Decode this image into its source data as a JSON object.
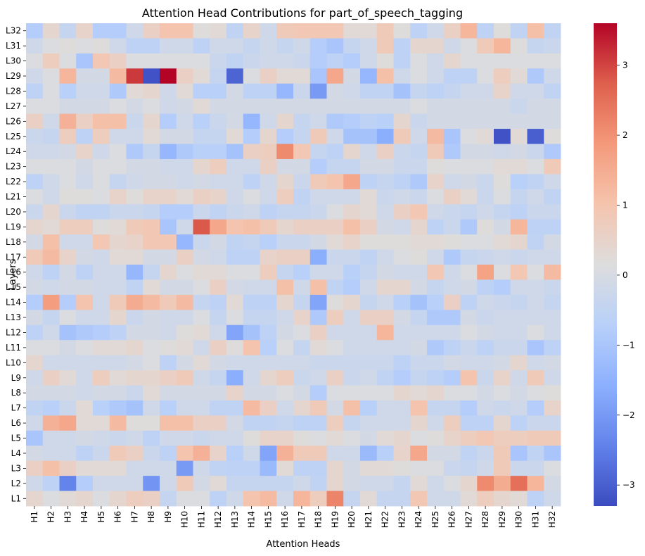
{
  "chart_data": {
    "type": "heatmap",
    "title": "Attention Head Contributions for part_of_speech_tagging",
    "xlabel": "Attention Heads",
    "ylabel": "Layers",
    "x_categories": [
      "H1",
      "H2",
      "H3",
      "H4",
      "H5",
      "H6",
      "H7",
      "H8",
      "H9",
      "H10",
      "H11",
      "H12",
      "H13",
      "H14",
      "H15",
      "H16",
      "H17",
      "H18",
      "H19",
      "H20",
      "H21",
      "H22",
      "H23",
      "H24",
      "H25",
      "H26",
      "H27",
      "H28",
      "H29",
      "H30",
      "H31",
      "H32"
    ],
    "y_categories": [
      "L32",
      "L31",
      "L30",
      "L29",
      "L28",
      "L27",
      "L26",
      "L25",
      "L24",
      "L23",
      "L22",
      "L21",
      "L20",
      "L19",
      "L18",
      "L17",
      "L16",
      "L15",
      "L14",
      "L13",
      "L12",
      "L11",
      "L10",
      "L9",
      "L8",
      "L7",
      "L6",
      "L5",
      "L4",
      "L3",
      "L2",
      "L1"
    ],
    "colormap": "coolwarm",
    "vmin": -3.3,
    "vmax": 3.6,
    "colorbar_ticks": [
      3,
      2,
      1,
      0,
      -1,
      -2,
      -3
    ],
    "colorbar_tick_labels": [
      "3",
      "2",
      "1",
      "0",
      "−1",
      "−2",
      "−3"
    ],
    "values": [
      [
        -0.8,
        0.4,
        -0.4,
        0.5,
        -0.8,
        -0.8,
        -0.2,
        0.6,
        1.0,
        1.0,
        0.2,
        0.3,
        -0.5,
        0.5,
        -0.2,
        0.8,
        0.9,
        0.9,
        0.9,
        0.3,
        0.3,
        0.8,
        0.2,
        -0.6,
        -0.2,
        0.6,
        1.3,
        -0.6,
        0.2,
        -0.5,
        1.1,
        -0.5
      ],
      [
        -0.2,
        0.1,
        0.2,
        0.1,
        0.2,
        -0.2,
        -0.6,
        -0.6,
        -0.2,
        -0.2,
        -0.6,
        -0.2,
        -0.2,
        -0.4,
        -0.2,
        -0.4,
        -0.2,
        -0.8,
        -1.0,
        -0.4,
        -0.2,
        0.8,
        -0.6,
        0.4,
        0.4,
        -0.2,
        0.1,
        0.8,
        1.3,
        0.2,
        -0.4,
        -0.3
      ],
      [
        0.1,
        0.7,
        0.1,
        -1.0,
        0.9,
        0.6,
        0.1,
        0.1,
        0.1,
        0.1,
        0.1,
        -0.3,
        -0.5,
        -0.3,
        -0.2,
        -0.2,
        -0.3,
        -0.8,
        -0.6,
        -0.8,
        -0.2,
        0.2,
        -0.6,
        0.1,
        -0.2,
        0.4,
        0.1,
        0.1,
        0.1,
        0.1,
        0.1,
        0.1
      ],
      [
        -0.2,
        0.1,
        1.3,
        -0.1,
        -0.1,
        1.2,
        3.1,
        -3.2,
        3.6,
        0.6,
        0.3,
        -0.4,
        -2.9,
        0.1,
        0.6,
        0.3,
        0.3,
        -1.0,
        1.6,
        -0.1,
        -1.4,
        1.1,
        -0.2,
        0.1,
        -0.2,
        -0.6,
        -0.6,
        0.1,
        0.7,
        0.3,
        -0.9,
        -0.2
      ],
      [
        -0.6,
        0.1,
        -0.7,
        -0.2,
        -0.2,
        -0.9,
        0.3,
        0.4,
        -0.2,
        0.3,
        -0.7,
        -0.7,
        -0.1,
        -0.6,
        -0.6,
        -1.4,
        -0.3,
        -2.0,
        -0.1,
        -0.2,
        -0.5,
        -0.5,
        -1.1,
        -0.4,
        -0.6,
        -0.4,
        -0.2,
        -0.2,
        0.5,
        -0.2,
        -0.2,
        -0.5
      ],
      [
        0.1,
        0.1,
        -0.1,
        -0.1,
        -0.1,
        0.1,
        -0.1,
        0.1,
        -0.2,
        -0.1,
        0.3,
        -0.1,
        -0.1,
        -0.1,
        -0.1,
        -0.1,
        -0.1,
        -0.1,
        -0.1,
        -0.1,
        -0.1,
        -0.1,
        -0.1,
        0.1,
        -0.1,
        -0.1,
        -0.1,
        -0.1,
        -0.1,
        -0.3,
        -0.1,
        -0.1
      ],
      [
        0.6,
        -0.2,
        1.4,
        0.6,
        1.1,
        1.1,
        -0.3,
        0.4,
        -0.8,
        -0.2,
        -0.7,
        -0.3,
        -0.1,
        -1.4,
        -0.2,
        0.4,
        -0.4,
        -0.2,
        -0.9,
        -0.8,
        -0.6,
        -0.7,
        0.4,
        -0.3,
        -0.1,
        -0.1,
        -0.1,
        -0.1,
        -0.1,
        -0.1,
        -0.1,
        -0.1
      ],
      [
        -0.3,
        -0.4,
        0.7,
        -0.6,
        0.7,
        -0.2,
        -0.2,
        0.3,
        -0.1,
        -0.1,
        -0.4,
        -0.4,
        0.3,
        -0.8,
        0.4,
        -0.8,
        -0.4,
        0.8,
        -0.2,
        -1.1,
        -1.1,
        -1.6,
        0.8,
        -0.2,
        1.2,
        -1.0,
        0.1,
        0.3,
        -3.2,
        0.3,
        -3.0,
        0.2
      ],
      [
        -0.2,
        -0.2,
        -0.1,
        0.5,
        -0.2,
        0.1,
        -0.9,
        -0.4,
        -1.4,
        -0.9,
        -0.7,
        -0.7,
        -1.1,
        0.6,
        0.7,
        2.1,
        0.9,
        -0.4,
        -0.6,
        0.4,
        -0.2,
        0.6,
        -0.3,
        -0.4,
        0.8,
        -0.9,
        -0.1,
        -0.1,
        -0.2,
        -0.1,
        -0.3,
        -0.9
      ],
      [
        0.1,
        0.1,
        0.1,
        -0.1,
        0.1,
        0.1,
        -0.1,
        -0.1,
        -0.2,
        -0.2,
        0.4,
        0.7,
        -0.2,
        -0.2,
        0.6,
        -0.1,
        -0.1,
        -0.8,
        -0.4,
        -0.4,
        -0.1,
        -0.1,
        -0.3,
        -0.3,
        0.2,
        0.1,
        0.1,
        0.1,
        0.3,
        0.3,
        0.1,
        0.8
      ],
      [
        -0.6,
        -0.2,
        0.1,
        -0.2,
        0.1,
        -0.4,
        -0.2,
        -0.1,
        -0.1,
        -0.2,
        -0.1,
        -0.2,
        -0.2,
        -0.6,
        -0.2,
        0.4,
        -0.3,
        0.8,
        1.0,
        1.6,
        -0.6,
        -0.4,
        -0.6,
        -0.9,
        0.5,
        -0.2,
        -0.1,
        -0.3,
        0.2,
        -0.7,
        -0.5,
        -0.2
      ],
      [
        0.1,
        -0.2,
        0.2,
        0.2,
        0.1,
        0.5,
        0.2,
        0.5,
        0.5,
        0.3,
        0.6,
        0.5,
        -0.2,
        0.1,
        -0.2,
        0.7,
        -0.5,
        -0.2,
        -0.2,
        -0.2,
        0.3,
        -0.3,
        -0.2,
        -0.3,
        0.1,
        0.6,
        0.3,
        -0.3,
        0.1,
        -0.4,
        -0.2,
        -0.5
      ],
      [
        -0.3,
        0.4,
        -0.3,
        -0.5,
        -0.5,
        -0.3,
        -0.3,
        -0.4,
        -0.8,
        -0.8,
        -0.3,
        -0.5,
        -0.3,
        -0.2,
        -0.6,
        -0.4,
        -0.4,
        -0.3,
        0.1,
        0.4,
        0.3,
        -0.2,
        0.6,
        0.9,
        -0.2,
        -0.3,
        -0.4,
        -0.2,
        -0.4,
        -0.6,
        -0.3,
        -0.3
      ],
      [
        0.4,
        0.3,
        0.7,
        0.7,
        0.2,
        0.3,
        0.8,
        0.9,
        -1.0,
        -0.2,
        2.8,
        1.6,
        1.0,
        1.1,
        0.8,
        0.4,
        0.6,
        0.6,
        0.6,
        1.1,
        0.6,
        -0.1,
        -0.2,
        0.4,
        -0.6,
        -0.3,
        -0.9,
        0.2,
        -0.1,
        1.3,
        -0.6,
        -0.6
      ],
      [
        -0.1,
        1.1,
        -0.2,
        -0.2,
        0.9,
        0.4,
        0.5,
        0.9,
        0.9,
        -1.4,
        -0.3,
        -0.1,
        -0.5,
        -0.4,
        -0.7,
        -0.3,
        -0.3,
        -0.1,
        0.3,
        0.5,
        0.2,
        0.2,
        0.2,
        0.3,
        0.3,
        0.2,
        0.1,
        0.1,
        0.3,
        0.4,
        -0.5,
        -0.1
      ],
      [
        0.8,
        1.2,
        0.5,
        -0.1,
        -0.2,
        0.3,
        0.3,
        -0.1,
        -0.1,
        0.6,
        -0.1,
        -0.2,
        -0.6,
        -0.6,
        0.5,
        0.6,
        0.6,
        -1.6,
        -0.3,
        -0.3,
        -0.5,
        -0.2,
        0.1,
        0.2,
        -0.2,
        -0.9,
        -0.4,
        -0.3,
        -0.2,
        -0.3,
        -0.2,
        -0.2
      ],
      [
        -0.2,
        -0.6,
        -0.1,
        -0.6,
        -0.2,
        -0.2,
        -1.4,
        -0.4,
        0.4,
        0.1,
        0.3,
        0.3,
        0.1,
        0.1,
        0.7,
        -0.4,
        -0.7,
        -0.2,
        -0.2,
        -0.7,
        -0.4,
        -0.1,
        -0.2,
        -0.2,
        0.9,
        -0.2,
        0.1,
        1.7,
        0.1,
        0.9,
        0.1,
        1.2
      ],
      [
        -0.1,
        -0.2,
        -0.1,
        -0.1,
        -0.2,
        -0.2,
        -0.5,
        0.3,
        -0.1,
        -0.1,
        0.1,
        0.6,
        -0.1,
        -0.2,
        -0.2,
        1.1,
        -0.2,
        1.1,
        -0.5,
        -0.8,
        -0.2,
        0.4,
        0.4,
        -0.1,
        -0.4,
        -0.2,
        -0.1,
        -0.6,
        -0.8,
        -0.2,
        -0.2,
        -0.3
      ],
      [
        -0.8,
        1.8,
        -0.8,
        1.0,
        -0.2,
        0.8,
        1.5,
        1.2,
        0.8,
        1.2,
        -0.4,
        -0.6,
        0.3,
        -0.6,
        -0.6,
        0.4,
        -0.4,
        -1.8,
        0.2,
        0.4,
        -0.4,
        -0.2,
        -0.7,
        -1.1,
        -0.7,
        0.6,
        -0.6,
        -0.2,
        -0.3,
        -0.4,
        -0.2,
        -0.4
      ],
      [
        -0.1,
        -0.4,
        0.1,
        -0.2,
        -0.2,
        0.4,
        -0.3,
        -0.1,
        -0.2,
        -0.2,
        0.1,
        -0.4,
        0.1,
        -0.4,
        -0.4,
        -0.2,
        0.5,
        -0.9,
        0.7,
        -0.2,
        0.6,
        0.6,
        -0.1,
        -0.4,
        -0.9,
        -0.9,
        -0.1,
        -0.3,
        -0.2,
        -0.2,
        -0.2,
        -0.2
      ],
      [
        -0.6,
        -0.2,
        -1.1,
        -0.9,
        -0.8,
        -0.6,
        -0.1,
        -0.1,
        -0.2,
        0.2,
        0.3,
        -0.2,
        -1.8,
        -1.1,
        -0.6,
        -0.1,
        0.1,
        0.6,
        -0.2,
        -0.2,
        -0.2,
        1.3,
        -0.2,
        -0.2,
        -0.2,
        -0.2,
        0.1,
        -0.1,
        -0.2,
        -0.2,
        0.1,
        -0.2
      ],
      [
        0.1,
        0.1,
        -0.1,
        0.1,
        0.3,
        0.3,
        0.4,
        0.1,
        0.2,
        0.3,
        -0.2,
        0.6,
        0.2,
        1.0,
        -0.7,
        0.1,
        -0.4,
        0.3,
        0.1,
        -0.2,
        -0.2,
        -0.2,
        -0.2,
        -0.1,
        -0.9,
        -0.6,
        -0.3,
        -0.6,
        -0.3,
        -0.3,
        -1.0,
        -0.6
      ],
      [
        0.4,
        -0.2,
        -0.2,
        -0.2,
        -0.2,
        -0.2,
        -0.1,
        0.1,
        -0.6,
        -0.1,
        0.3,
        -0.1,
        -0.2,
        -0.2,
        -0.2,
        -0.2,
        -0.2,
        -0.3,
        -0.3,
        -0.3,
        -0.3,
        -0.3,
        -0.6,
        -0.3,
        -0.3,
        -0.1,
        -0.2,
        -0.2,
        -0.1,
        0.4,
        -0.2,
        -0.1
      ],
      [
        -0.2,
        0.6,
        0.3,
        -0.2,
        0.7,
        0.3,
        0.4,
        0.4,
        0.6,
        0.8,
        -0.2,
        -0.4,
        -1.6,
        -0.2,
        0.4,
        0.7,
        -0.3,
        -0.2,
        0.6,
        -0.3,
        -0.2,
        -0.5,
        -0.8,
        -0.4,
        -0.6,
        -0.8,
        1.0,
        -0.3,
        0.5,
        -0.2,
        0.8,
        -0.2
      ],
      [
        -0.1,
        -0.1,
        -0.1,
        -0.2,
        -0.1,
        -0.1,
        -0.3,
        0.3,
        -0.1,
        -0.1,
        -0.1,
        -0.1,
        0.5,
        -0.1,
        -0.1,
        0.1,
        -0.1,
        -0.8,
        0.1,
        0.1,
        0.1,
        0.1,
        0.4,
        0.3,
        0.4,
        0.1,
        0.1,
        -0.1,
        0.1,
        -0.1,
        0.1,
        0.2
      ],
      [
        -0.5,
        -0.7,
        -0.3,
        0.3,
        -0.7,
        -0.9,
        -1.1,
        -0.2,
        -0.7,
        -0.2,
        -0.2,
        -0.5,
        -0.5,
        1.2,
        0.6,
        -0.2,
        0.4,
        0.8,
        -0.1,
        1.1,
        -0.7,
        -0.2,
        -0.2,
        1.0,
        -0.4,
        -0.4,
        -0.8,
        -0.2,
        -0.3,
        -0.2,
        -0.8,
        0.5
      ],
      [
        -0.2,
        1.4,
        1.6,
        0.3,
        0.3,
        1.2,
        0.2,
        0.2,
        1.1,
        1.1,
        0.6,
        0.6,
        -0.1,
        -0.5,
        -0.5,
        -0.4,
        -0.6,
        -0.6,
        0.7,
        -0.4,
        -0.2,
        -0.2,
        -0.2,
        0.4,
        -0.2,
        0.7,
        -0.6,
        -0.6,
        0.4,
        -0.6,
        -0.3,
        -0.3
      ],
      [
        -1.0,
        -0.2,
        -0.2,
        -0.1,
        -0.2,
        -0.3,
        -0.2,
        -0.6,
        -0.2,
        -0.2,
        -0.3,
        -0.2,
        -0.2,
        0.2,
        0.5,
        0.5,
        0.2,
        0.1,
        0.3,
        0.1,
        -0.1,
        0.3,
        0.4,
        0.1,
        0.2,
        0.5,
        0.7,
        0.9,
        0.7,
        0.7,
        0.8,
        0.8
      ],
      [
        -0.1,
        -0.2,
        -0.2,
        -0.6,
        -0.3,
        0.8,
        0.6,
        -0.3,
        -0.6,
        1.0,
        1.4,
        0.5,
        -0.7,
        -0.2,
        -1.8,
        1.4,
        0.8,
        0.8,
        -0.2,
        -0.2,
        -1.3,
        -0.7,
        0.5,
        1.6,
        -0.1,
        -0.1,
        -0.5,
        -0.3,
        0.8,
        -1.0,
        -0.5,
        -1.0
      ],
      [
        0.6,
        1.1,
        0.6,
        0.3,
        0.3,
        0.3,
        -0.2,
        -0.2,
        -0.2,
        -2.0,
        -0.2,
        -0.5,
        -0.6,
        -0.6,
        -1.3,
        0.3,
        -0.6,
        -0.6,
        0.4,
        -0.1,
        0.3,
        0.3,
        0.2,
        0.1,
        0.1,
        -0.3,
        -0.4,
        -0.2,
        0.8,
        -0.3,
        -0.3,
        0.1
      ],
      [
        -0.2,
        -0.6,
        -2.4,
        -0.8,
        -0.2,
        -0.2,
        -0.2,
        -2.1,
        -0.2,
        0.8,
        -0.1,
        0.3,
        -0.4,
        -0.4,
        -0.4,
        -0.4,
        -0.2,
        -0.5,
        0.4,
        -0.1,
        -0.2,
        -0.2,
        -0.4,
        0.3,
        -0.2,
        0.1,
        0.4,
        2.1,
        1.5,
        2.5,
        1.3,
        -0.1
      ],
      [
        0.4,
        0.1,
        0.3,
        0.4,
        0.1,
        0.4,
        0.7,
        0.6,
        -0.4,
        0.1,
        0.1,
        -0.6,
        -0.2,
        1.0,
        1.2,
        -0.2,
        1.3,
        0.7,
        2.2,
        -0.4,
        0.3,
        -0.4,
        -0.4,
        0.9,
        -0.2,
        -0.2,
        0.3,
        0.7,
        0.4,
        0.3,
        -0.6,
        -0.2
      ]
    ]
  }
}
